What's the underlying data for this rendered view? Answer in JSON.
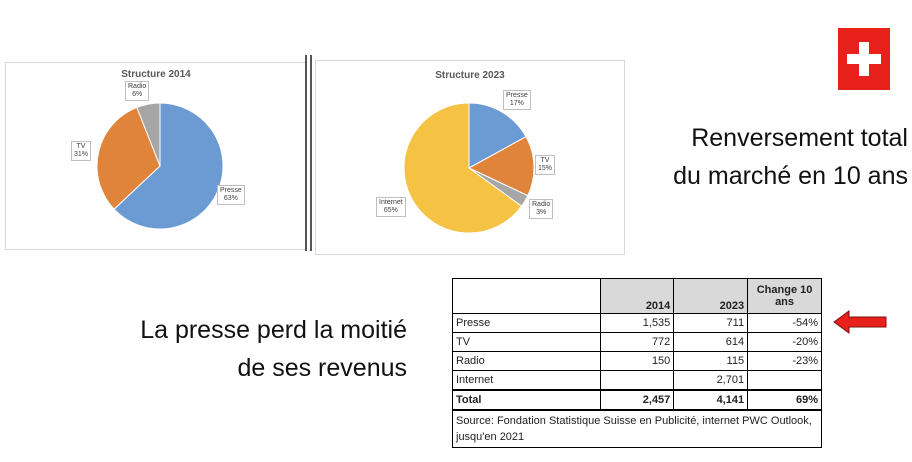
{
  "chart_data": [
    {
      "type": "pie",
      "title": "Structure 2014",
      "slices": [
        {
          "label": "Presse",
          "value": 63,
          "display": "63%",
          "color": "#6b9bd2"
        },
        {
          "label": "TV",
          "value": 31,
          "display": "31%",
          "color": "#e0843c"
        },
        {
          "label": "Radio",
          "value": 6,
          "display": "6%",
          "color": "#a6a6a6"
        }
      ]
    },
    {
      "type": "pie",
      "title": "Structure 2023",
      "slices": [
        {
          "label": "Presse",
          "value": 17,
          "display": "17%",
          "color": "#6b9bd2"
        },
        {
          "label": "TV",
          "value": 15,
          "display": "15%",
          "color": "#e0843c"
        },
        {
          "label": "Radio",
          "value": 3,
          "display": "3%",
          "color": "#a6a6a6"
        },
        {
          "label": "Internet",
          "value": 65,
          "display": "65%",
          "color": "#f5c243"
        }
      ]
    }
  ],
  "headline_right": [
    "Renversement total",
    "du marché en 10 ans"
  ],
  "headline_left": [
    "La presse perd la moitié",
    "de ses revenus"
  ],
  "flag": {
    "name": "swiss-flag",
    "red": "#e8211d",
    "white": "#ffffff"
  },
  "table": {
    "headers": [
      "",
      "2014",
      "2023",
      "Change 10 ans"
    ],
    "rows": [
      [
        "Presse",
        "1,535",
        "711",
        "-54%"
      ],
      [
        "TV",
        "772",
        "614",
        "-20%"
      ],
      [
        "Radio",
        "150",
        "115",
        "-23%"
      ],
      [
        "Internet",
        "",
        "2,701",
        ""
      ]
    ],
    "total": [
      "Total",
      "2,457",
      "4,141",
      "69%"
    ],
    "source": "Source: Fondation Statistique Suisse en Publicité, internet PWC Outlook, jusqu'en 2021"
  },
  "arrow": {
    "icon": "left-arrow-icon",
    "color": "#e8211d"
  }
}
